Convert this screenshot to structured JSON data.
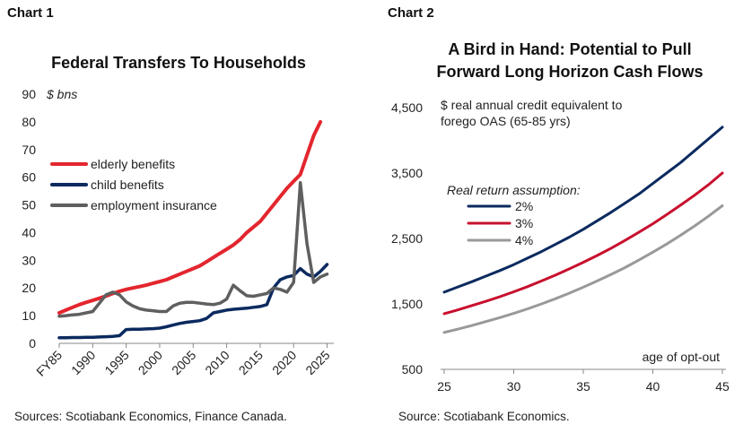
{
  "charts": [
    {
      "panel_label": "Chart 1",
      "source": "Sources: Scotiabank Economics, Finance Canada."
    },
    {
      "panel_label": "Chart 2",
      "source": "Source: Scotiabank Economics."
    }
  ],
  "chart_data": [
    {
      "type": "line",
      "title": "Federal Transfers To Households",
      "ylabel": "$ bns",
      "xlabel": "",
      "ylim": [
        0,
        90
      ],
      "yticks": [
        0,
        10,
        20,
        30,
        40,
        50,
        60,
        70,
        80,
        90
      ],
      "xlim": [
        1985,
        2026
      ],
      "xtick_values": [
        1985,
        1990,
        1995,
        2000,
        2005,
        2010,
        2015,
        2020,
        2025
      ],
      "xtick_labels": [
        "FY85",
        "1990",
        "1995",
        "2000",
        "2005",
        "2010",
        "2015",
        "2020",
        "2025"
      ],
      "legend_position": "top-left",
      "grid": false,
      "x": [
        1985,
        1986,
        1987,
        1988,
        1989,
        1990,
        1991,
        1992,
        1993,
        1994,
        1995,
        1996,
        1997,
        1998,
        1999,
        2000,
        2001,
        2002,
        2003,
        2004,
        2005,
        2006,
        2007,
        2008,
        2009,
        2010,
        2011,
        2012,
        2013,
        2014,
        2015,
        2016,
        2017,
        2018,
        2019,
        2020,
        2021,
        2022,
        2023,
        2024,
        2025,
        2026
      ],
      "series": [
        {
          "name": "elderly benefits",
          "color": "#e3262e",
          "values": [
            11,
            12,
            13,
            14,
            14.8,
            15.5,
            16.3,
            17.1,
            18,
            18.8,
            19.5,
            20,
            20.5,
            21,
            21.7,
            22.3,
            23,
            24,
            25,
            26,
            27,
            28,
            29.5,
            31,
            32.5,
            34,
            35.5,
            37.5,
            40,
            42,
            44,
            47,
            50,
            53,
            56,
            58.5,
            61,
            68,
            75,
            80,
            null,
            null
          ]
        },
        {
          "name": "child benefits",
          "color": "#0b2a5f",
          "values": [
            2,
            2,
            2.1,
            2.1,
            2.2,
            2.2,
            2.3,
            2.4,
            2.5,
            2.8,
            5,
            5.1,
            5.1,
            5.2,
            5.3,
            5.5,
            6,
            6.6,
            7.2,
            7.6,
            7.9,
            8.2,
            9,
            11,
            11.5,
            12,
            12.3,
            12.5,
            12.7,
            13,
            13.3,
            14,
            20,
            23,
            24,
            24.5,
            27,
            25,
            24,
            26,
            28.5,
            null
          ]
        },
        {
          "name": "employment insurance",
          "color": "#5f5f5f",
          "values": [
            9.8,
            10,
            10.3,
            10.5,
            11,
            11.5,
            14.5,
            17.5,
            18.5,
            17.5,
            15,
            13.5,
            12.5,
            12,
            11.8,
            11.5,
            11.5,
            13.5,
            14.5,
            14.8,
            14.8,
            14.5,
            14.2,
            14,
            14.5,
            16,
            21,
            19,
            17.2,
            17,
            17.5,
            18,
            20,
            19.5,
            18.5,
            22,
            58,
            36,
            22,
            24,
            25,
            null
          ]
        }
      ]
    },
    {
      "type": "line",
      "title": "A Bird in Hand: Potential to Pull Forward Long Horizon Cash Flows",
      "title_lines": [
        "A Bird in Hand: Potential to Pull",
        "Forward Long Horizon Cash Flows"
      ],
      "ylabel": "$ real annual credit equivalent to forego OAS (65-85 yrs)",
      "ylabel_lines": [
        "$ real annual credit equivalent to",
        "forego OAS (65-85 yrs)"
      ],
      "xlabel": "age of opt-out",
      "ylim": [
        500,
        4500
      ],
      "yticks": [
        500,
        1500,
        2500,
        3500,
        4500
      ],
      "ytick_labels": [
        "500",
        "1,500",
        "2,500",
        "3,500",
        "4,500"
      ],
      "xlim": [
        25,
        45
      ],
      "xticks": [
        25,
        30,
        35,
        40,
        45
      ],
      "legend_title": "Real return assumption:",
      "legend_position": "top-left",
      "grid": false,
      "x": [
        25,
        26,
        27,
        28,
        29,
        30,
        31,
        32,
        33,
        34,
        35,
        36,
        37,
        38,
        39,
        40,
        41,
        42,
        43,
        44,
        45
      ],
      "series": [
        {
          "name": "2%",
          "color": "#0b2a5f",
          "values": [
            1680,
            1760,
            1840,
            1925,
            2010,
            2100,
            2200,
            2300,
            2410,
            2520,
            2640,
            2770,
            2900,
            3040,
            3180,
            3340,
            3500,
            3660,
            3840,
            4020,
            4200
          ]
        },
        {
          "name": "3%",
          "color": "#c8102e",
          "values": [
            1350,
            1410,
            1475,
            1540,
            1610,
            1685,
            1765,
            1850,
            1940,
            2035,
            2135,
            2240,
            2350,
            2470,
            2595,
            2725,
            2865,
            3010,
            3160,
            3320,
            3500
          ]
        },
        {
          "name": "4%",
          "color": "#999999",
          "values": [
            1065,
            1115,
            1170,
            1230,
            1290,
            1355,
            1425,
            1500,
            1580,
            1665,
            1755,
            1850,
            1950,
            2055,
            2170,
            2290,
            2415,
            2550,
            2690,
            2840,
            3000
          ]
        }
      ]
    }
  ]
}
